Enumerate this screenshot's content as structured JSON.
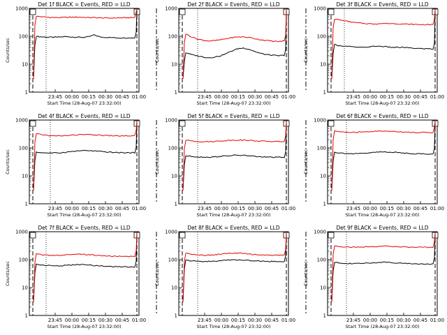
{
  "chart_data": [
    {
      "type": "line",
      "title": "Det 1f BLACK = Events, RED = LLD",
      "xlabel": "Start Time (28-Aug-07 23:32:00)",
      "ylabel": "Counts/sec",
      "log_y": true,
      "ylim": [
        1,
        1000
      ],
      "yticks": [
        "1",
        "10",
        "100",
        "1000"
      ],
      "xticks": [
        "23:45",
        "00:00",
        "00:15",
        "00:30",
        "00:45",
        "01:00"
      ],
      "series": [
        {
          "color": "#000000",
          "values": [
            100,
            95,
            93,
            92,
            94,
            97,
            95,
            93,
            92,
            95,
            112,
            94,
            92,
            90,
            88,
            88,
            88,
            88
          ]
        },
        {
          "color": "#e60000",
          "values": [
            520,
            500,
            480,
            470,
            470,
            475,
            480,
            485,
            480,
            470,
            465,
            460,
            450,
            450,
            455,
            460,
            465,
            470
          ]
        }
      ]
    },
    {
      "type": "line",
      "title": "Det 2f BLACK = Events, RED = LLD",
      "xlabel": "Start Time (28-Aug-07 23:32:00)",
      "ylabel": "Counts/sec",
      "log_y": true,
      "ylim": [
        1,
        1000
      ],
      "yticks": [
        "1",
        "10",
        "100",
        "1000"
      ],
      "xticks": [
        "23:45",
        "00:00",
        "00:15",
        "00:30",
        "00:45",
        "01:00"
      ],
      "series": [
        {
          "color": "#000000",
          "values": [
            26,
            22,
            20,
            18,
            17,
            18,
            20,
            24,
            30,
            36,
            38,
            34,
            28,
            24,
            22,
            21,
            20,
            21
          ]
        },
        {
          "color": "#e60000",
          "values": [
            120,
            95,
            80,
            72,
            68,
            70,
            75,
            82,
            90,
            95,
            95,
            90,
            82,
            75,
            70,
            67,
            65,
            68
          ]
        }
      ]
    },
    {
      "type": "line",
      "title": "Det 3f BLACK = Events, RED = LLD",
      "xlabel": "Start Time (28-Aug-07 23:32:00)",
      "ylabel": "Counts/sec",
      "log_y": true,
      "ylim": [
        1,
        1000
      ],
      "yticks": [
        "1",
        "10",
        "100",
        "1000"
      ],
      "xticks": [
        "23:45",
        "00:00",
        "00:15",
        "00:30",
        "00:45",
        "01:00"
      ],
      "series": [
        {
          "color": "#000000",
          "values": [
            50,
            46,
            44,
            42,
            40,
            40,
            42,
            44,
            44,
            42,
            40,
            40,
            40,
            38,
            37,
            36,
            36,
            35
          ]
        },
        {
          "color": "#e60000",
          "values": [
            420,
            380,
            350,
            320,
            300,
            290,
            280,
            280,
            285,
            290,
            285,
            280,
            275,
            270,
            265,
            262,
            262,
            262
          ]
        }
      ]
    },
    {
      "type": "line",
      "title": "Det 4f BLACK = Events, RED = LLD",
      "xlabel": "Start Time (28-Aug-07 23:32:00)",
      "ylabel": "Counts/sec",
      "log_y": true,
      "ylim": [
        1,
        1000
      ],
      "yticks": [
        "1",
        "10",
        "100",
        "1000"
      ],
      "xticks": [
        "23:45",
        "00:00",
        "00:15",
        "00:30",
        "00:45",
        "01:00"
      ],
      "series": [
        {
          "color": "#000000",
          "values": [
            70,
            68,
            66,
            66,
            67,
            70,
            74,
            78,
            80,
            80,
            78,
            75,
            72,
            70,
            68,
            68,
            67,
            67
          ]
        },
        {
          "color": "#e60000",
          "values": [
            320,
            300,
            280,
            270,
            270,
            275,
            285,
            295,
            300,
            300,
            295,
            285,
            280,
            275,
            272,
            270,
            270,
            272
          ]
        }
      ]
    },
    {
      "type": "line",
      "title": "Det 5f BLACK = Events, RED = LLD",
      "xlabel": "Start Time (28-Aug-07 23:32:00)",
      "ylabel": "Counts/sec",
      "log_y": true,
      "ylim": [
        1,
        1000
      ],
      "yticks": [
        "1",
        "10",
        "100",
        "1000"
      ],
      "xticks": [
        "23:45",
        "00:00",
        "00:15",
        "00:30",
        "00:45",
        "01:00"
      ],
      "series": [
        {
          "color": "#000000",
          "values": [
            52,
            50,
            48,
            47,
            47,
            48,
            50,
            52,
            54,
            55,
            54,
            52,
            50,
            48,
            47,
            47,
            46,
            46
          ]
        },
        {
          "color": "#e60000",
          "values": [
            190,
            180,
            172,
            168,
            168,
            172,
            178,
            185,
            190,
            192,
            190,
            186,
            180,
            175,
            172,
            170,
            170,
            172
          ]
        }
      ]
    },
    {
      "type": "line",
      "title": "Det 6f BLACK = Events, RED = LLD",
      "xlabel": "Start Time (28-Aug-07 23:32:00)",
      "ylabel": "Counts/sec",
      "log_y": true,
      "ylim": [
        1,
        1000
      ],
      "yticks": [
        "1",
        "10",
        "100",
        "1000"
      ],
      "xticks": [
        "23:45",
        "00:00",
        "00:15",
        "00:30",
        "00:45",
        "01:00"
      ],
      "series": [
        {
          "color": "#000000",
          "values": [
            70,
            66,
            64,
            62,
            62,
            64,
            66,
            70,
            72,
            72,
            70,
            68,
            66,
            64,
            62,
            62,
            61,
            60
          ]
        },
        {
          "color": "#e60000",
          "values": [
            400,
            380,
            365,
            360,
            365,
            375,
            385,
            395,
            400,
            400,
            395,
            385,
            375,
            365,
            360,
            358,
            358,
            360
          ]
        }
      ]
    },
    {
      "type": "line",
      "title": "Det 7f BLACK = Events, RED = LLD",
      "xlabel": "Start Time (28-Aug-07 23:32:00)",
      "ylabel": "Counts/sec",
      "log_y": true,
      "ylim": [
        1,
        1000
      ],
      "yticks": [
        "1",
        "10",
        "100",
        "1000"
      ],
      "xticks": [
        "23:45",
        "00:00",
        "00:15",
        "00:30",
        "00:45",
        "01:00"
      ],
      "series": [
        {
          "color": "#000000",
          "values": [
            68,
            64,
            62,
            60,
            60,
            62,
            64,
            66,
            66,
            64,
            62,
            60,
            58,
            56,
            56,
            56,
            55,
            55
          ]
        },
        {
          "color": "#e60000",
          "values": [
            160,
            150,
            145,
            140,
            140,
            145,
            150,
            155,
            155,
            150,
            145,
            140,
            136,
            132,
            130,
            130,
            130,
            132
          ]
        }
      ]
    },
    {
      "type": "line",
      "title": "Det 8f BLACK = Events, RED = LLD",
      "xlabel": "Start Time (28-Aug-07 23:32:00)",
      "ylabel": "Counts/sec",
      "log_y": true,
      "ylim": [
        1,
        1000
      ],
      "yticks": [
        "1",
        "10",
        "100",
        "1000"
      ],
      "xticks": [
        "23:45",
        "00:00",
        "00:15",
        "00:30",
        "00:45",
        "01:00"
      ],
      "series": [
        {
          "color": "#000000",
          "values": [
            95,
            90,
            88,
            86,
            86,
            88,
            92,
            96,
            98,
            98,
            96,
            92,
            90,
            88,
            87,
            86,
            86,
            86
          ]
        },
        {
          "color": "#e60000",
          "values": [
            170,
            160,
            150,
            145,
            145,
            150,
            158,
            165,
            170,
            170,
            165,
            158,
            152,
            148,
            145,
            145,
            145,
            148
          ]
        }
      ]
    },
    {
      "type": "line",
      "title": "Det 9f BLACK = Events, RED = LLD",
      "xlabel": "Start Time (28-Aug-07 23:32:00)",
      "ylabel": "Counts/sec",
      "log_y": true,
      "ylim": [
        1,
        1000
      ],
      "yticks": [
        "1",
        "10",
        "100",
        "1000"
      ],
      "xticks": [
        "23:45",
        "00:00",
        "00:15",
        "00:30",
        "00:45",
        "01:00"
      ],
      "series": [
        {
          "color": "#000000",
          "values": [
            80,
            76,
            74,
            72,
            72,
            74,
            76,
            78,
            80,
            80,
            78,
            76,
            74,
            72,
            71,
            70,
            70,
            70
          ]
        },
        {
          "color": "#e60000",
          "values": [
            310,
            295,
            285,
            280,
            280,
            285,
            290,
            295,
            300,
            300,
            295,
            290,
            285,
            280,
            278,
            276,
            276,
            278
          ]
        }
      ]
    }
  ]
}
